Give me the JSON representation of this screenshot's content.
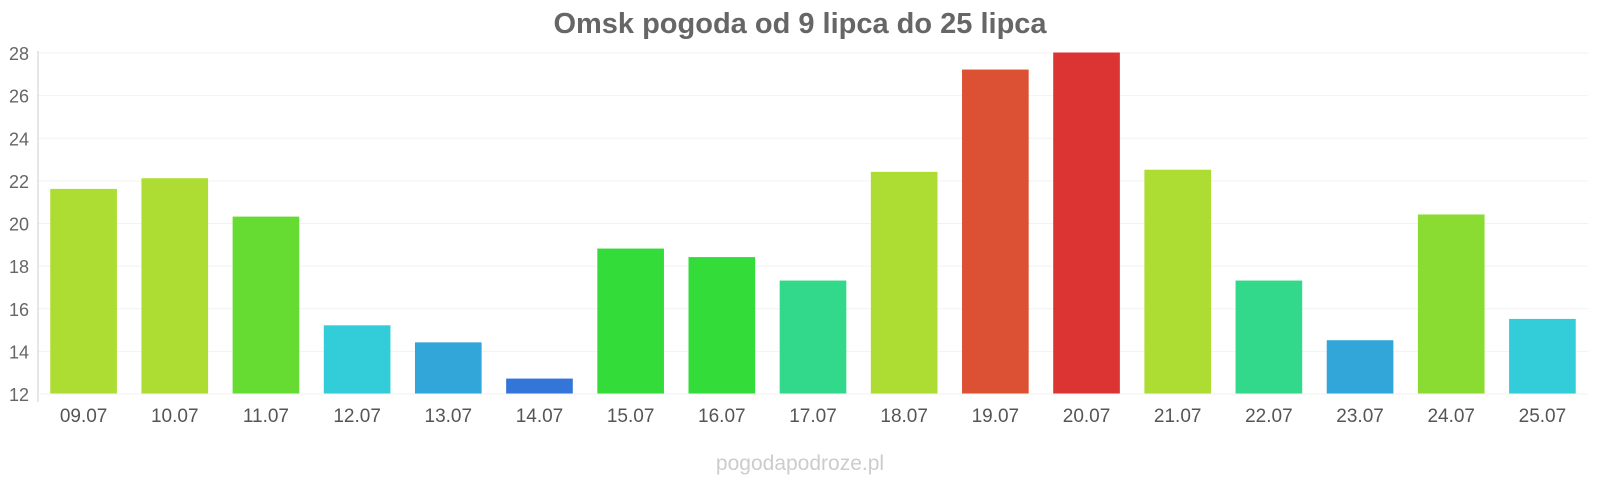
{
  "chart_data": {
    "type": "bar",
    "title": "Omsk pogoda od 9 lipca do 25 lipca",
    "xlabel": "",
    "ylabel": "",
    "categories": [
      "09.07",
      "10.07",
      "11.07",
      "12.07",
      "13.07",
      "14.07",
      "15.07",
      "16.07",
      "17.07",
      "18.07",
      "19.07",
      "20.07",
      "21.07",
      "22.07",
      "23.07",
      "24.07",
      "25.07"
    ],
    "values": [
      21.6,
      22.1,
      20.3,
      15.2,
      14.4,
      12.7,
      18.8,
      18.4,
      17.3,
      22.4,
      27.2,
      28.0,
      22.5,
      17.3,
      14.5,
      20.4,
      15.5
    ],
    "colors": [
      "#addc33",
      "#addc33",
      "#66dc33",
      "#33cdd9",
      "#33a6d9",
      "#3375d9",
      "#33dc38",
      "#33dc38",
      "#33d98a",
      "#addc33",
      "#dc5033",
      "#dc3333",
      "#addc33",
      "#33d98a",
      "#33a6d9",
      "#8adc33",
      "#33cdd9"
    ],
    "ylim": [
      12,
      28
    ],
    "yticks": [
      12,
      14,
      16,
      18,
      20,
      22,
      24,
      26,
      28
    ],
    "grid": true
  },
  "footer": {
    "source": "pogodapodroze.pl"
  }
}
